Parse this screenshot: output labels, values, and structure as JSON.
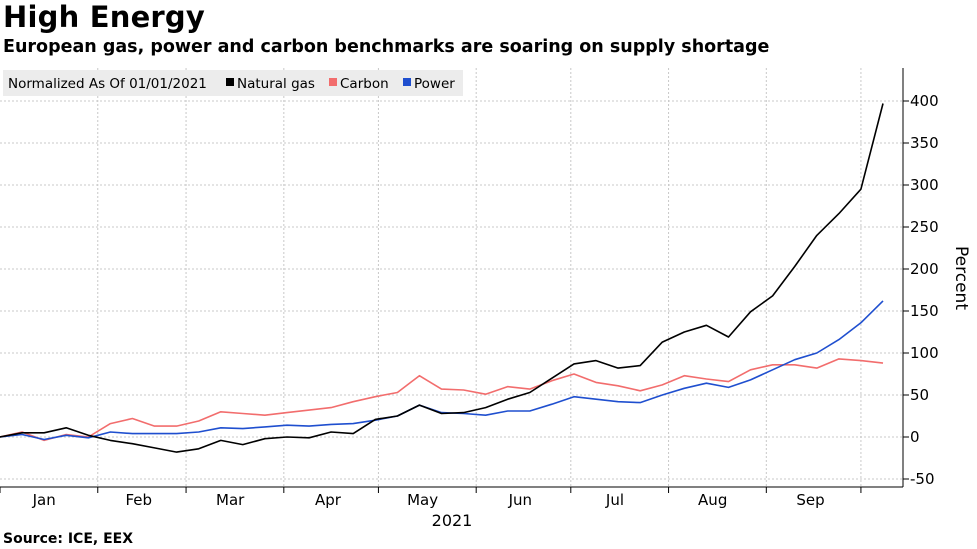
{
  "title": "High Energy",
  "subtitle": "European gas, power and carbon benchmarks are soaring on supply shortage",
  "source": "Source: ICE, EEX",
  "chart_data": {
    "type": "line",
    "legend_title": "Normalized As Of 01/01/2021",
    "legend_position": "top-left",
    "grid": true,
    "ylabel": "Percent",
    "xlabel": "2021",
    "ylim": [
      -50,
      400
    ],
    "yticks": [
      -50,
      0,
      50,
      100,
      150,
      200,
      250,
      300,
      350,
      400
    ],
    "ytick_labels": [
      "-50",
      "0",
      "50",
      "100",
      "150",
      "200",
      "250",
      "300",
      "350",
      "400"
    ],
    "xlim": [
      "2021-01-01",
      "2021-10-08"
    ],
    "x_tick_dates": [
      "2021-01-01",
      "2021-02-01",
      "2021-03-01",
      "2021-04-01",
      "2021-05-01",
      "2021-06-01",
      "2021-07-01",
      "2021-08-01",
      "2021-09-01",
      "2021-10-01"
    ],
    "month_labels": [
      {
        "label": "Jan",
        "date": "2021-01-15"
      },
      {
        "label": "Feb",
        "date": "2021-02-14"
      },
      {
        "label": "Mar",
        "date": "2021-03-15"
      },
      {
        "label": "Apr",
        "date": "2021-04-15"
      },
      {
        "label": "May",
        "date": "2021-05-15"
      },
      {
        "label": "Jun",
        "date": "2021-06-15"
      },
      {
        "label": "Jul",
        "date": "2021-07-15"
      },
      {
        "label": "Aug",
        "date": "2021-08-15"
      },
      {
        "label": "Sep",
        "date": "2021-09-15"
      }
    ],
    "x": [
      "2021-01-01",
      "2021-01-08",
      "2021-01-15",
      "2021-01-22",
      "2021-01-29",
      "2021-02-05",
      "2021-02-12",
      "2021-02-19",
      "2021-02-26",
      "2021-03-05",
      "2021-03-12",
      "2021-03-19",
      "2021-03-26",
      "2021-04-02",
      "2021-04-09",
      "2021-04-16",
      "2021-04-23",
      "2021-04-30",
      "2021-05-07",
      "2021-05-14",
      "2021-05-21",
      "2021-05-28",
      "2021-06-04",
      "2021-06-11",
      "2021-06-18",
      "2021-06-25",
      "2021-07-02",
      "2021-07-09",
      "2021-07-16",
      "2021-07-23",
      "2021-07-30",
      "2021-08-06",
      "2021-08-13",
      "2021-08-20",
      "2021-08-27",
      "2021-09-03",
      "2021-09-10",
      "2021-09-17",
      "2021-09-24",
      "2021-10-01",
      "2021-10-08"
    ],
    "series": [
      {
        "name": "Natural gas",
        "color": "#000000",
        "values": [
          0,
          5,
          5,
          11,
          2,
          -4,
          -8,
          -13,
          -18,
          -14,
          -4,
          -9,
          -2,
          0,
          -1,
          6,
          4,
          21,
          25,
          38,
          28,
          29,
          35,
          45,
          53,
          70,
          87,
          91,
          82,
          85,
          113,
          125,
          133,
          119,
          149,
          168,
          203,
          240,
          266,
          295,
          397
        ]
      },
      {
        "name": "Carbon",
        "color": "#f26d6d",
        "values": [
          0,
          6,
          -4,
          3,
          0,
          16,
          22,
          13,
          13,
          19,
          30,
          28,
          26,
          29,
          32,
          35,
          42,
          48,
          53,
          73,
          57,
          56,
          51,
          60,
          57,
          67,
          75,
          65,
          61,
          55,
          62,
          73,
          69,
          66,
          80,
          86,
          86,
          82,
          93,
          91,
          88
        ]
      },
      {
        "name": "Power",
        "color": "#1f4fcf",
        "values": [
          0,
          3,
          -3,
          2,
          -1,
          6,
          4,
          4,
          4,
          6,
          11,
          10,
          12,
          14,
          13,
          15,
          16,
          20,
          25,
          38,
          29,
          28,
          26,
          31,
          31,
          39,
          48,
          45,
          42,
          41,
          50,
          58,
          64,
          59,
          68,
          80,
          92,
          100,
          116,
          136,
          162
        ]
      }
    ]
  }
}
